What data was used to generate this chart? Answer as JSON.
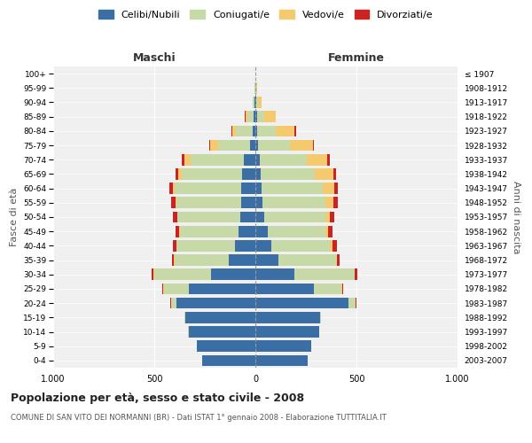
{
  "age_groups": [
    "0-4",
    "5-9",
    "10-14",
    "15-19",
    "20-24",
    "25-29",
    "30-34",
    "35-39",
    "40-44",
    "45-49",
    "50-54",
    "55-59",
    "60-64",
    "65-69",
    "70-74",
    "75-79",
    "80-84",
    "85-89",
    "90-94",
    "95-99",
    "100+"
  ],
  "birth_years": [
    "2003-2007",
    "1998-2002",
    "1993-1997",
    "1988-1992",
    "1983-1987",
    "1978-1982",
    "1973-1977",
    "1968-1972",
    "1963-1967",
    "1958-1962",
    "1953-1957",
    "1948-1952",
    "1943-1947",
    "1938-1942",
    "1933-1937",
    "1928-1932",
    "1923-1927",
    "1918-1922",
    "1913-1917",
    "1908-1912",
    "≤ 1907"
  ],
  "male_celibe": [
    265,
    290,
    330,
    345,
    390,
    330,
    220,
    130,
    100,
    85,
    75,
    70,
    70,
    65,
    55,
    25,
    15,
    10,
    5,
    2,
    0
  ],
  "male_coniugato": [
    0,
    0,
    2,
    5,
    25,
    120,
    280,
    270,
    290,
    290,
    310,
    320,
    330,
    300,
    265,
    160,
    80,
    30,
    8,
    3,
    0
  ],
  "male_vedovo": [
    0,
    0,
    0,
    0,
    2,
    5,
    3,
    2,
    2,
    2,
    3,
    5,
    10,
    15,
    30,
    40,
    20,
    10,
    2,
    0,
    0
  ],
  "male_divorziato": [
    0,
    0,
    0,
    0,
    2,
    5,
    8,
    12,
    18,
    18,
    20,
    20,
    15,
    15,
    15,
    5,
    4,
    2,
    0,
    0,
    0
  ],
  "female_celibe": [
    260,
    275,
    315,
    320,
    460,
    290,
    195,
    115,
    80,
    60,
    45,
    35,
    30,
    25,
    20,
    15,
    10,
    10,
    5,
    2,
    0
  ],
  "female_coniugato": [
    0,
    0,
    2,
    5,
    35,
    135,
    295,
    285,
    290,
    285,
    300,
    310,
    305,
    270,
    235,
    155,
    90,
    35,
    10,
    3,
    0
  ],
  "female_vedovo": [
    0,
    0,
    0,
    0,
    2,
    3,
    3,
    5,
    10,
    15,
    25,
    40,
    55,
    90,
    100,
    115,
    95,
    55,
    15,
    5,
    2
  ],
  "female_divorziato": [
    0,
    0,
    0,
    0,
    2,
    5,
    10,
    12,
    25,
    20,
    22,
    25,
    20,
    15,
    15,
    5,
    5,
    2,
    0,
    0,
    0
  ],
  "colors": {
    "celibe": "#3a6ea5",
    "coniugato": "#c8d9a8",
    "vedovo": "#f5c96e",
    "divorziato": "#cc2222"
  },
  "xlim": 1000,
  "title_main": "Popolazione per età, sesso e stato civile - 2008",
  "title_sub": "COMUNE DI SAN VITO DEI NORMANNI (BR) - Dati ISTAT 1° gennaio 2008 - Elaborazione TUTTITALIA.IT",
  "legend_labels": [
    "Celibi/Nubili",
    "Coniugati/e",
    "Vedovi/e",
    "Divorziati/e"
  ],
  "xlabel_left": "Maschi",
  "xlabel_right": "Femmine",
  "ylabel_left": "Fasce di età",
  "ylabel_right": "Anni di nascita",
  "bg_color": "#ffffff",
  "plot_bg": "#f0f0f0",
  "maschi_color": "#333333",
  "femmine_color": "#333333"
}
